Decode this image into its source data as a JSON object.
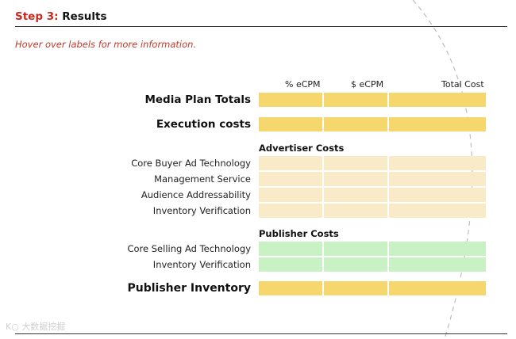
{
  "header": {
    "step_prefix": "Step 3:",
    "title": "Results"
  },
  "hint": "Hover over labels for more information.",
  "columns": [
    "% eCPM",
    "$ eCPM",
    "Total Cost"
  ],
  "rows": {
    "media_plan_totals": "Media Plan Totals",
    "execution_costs": "Execution costs",
    "publisher_inventory": "Publisher Inventory"
  },
  "advertiser_costs": {
    "heading": "Advertiser Costs",
    "items": [
      "Core Buyer Ad Technology",
      "Management Service",
      "Audience Addressability",
      "Inventory Verification"
    ]
  },
  "publisher_costs": {
    "heading": "Publisher Costs",
    "items": [
      "Core Selling Ad Technology",
      "Inventory Verification"
    ]
  },
  "watermark": "K○ 大数据挖掘",
  "colors": {
    "accent_red": "#cc2a1d",
    "summary_fill": "#f5d76e",
    "advertiser_fill": "#f9ebc7",
    "publisher_fill": "#c9f2c4"
  }
}
